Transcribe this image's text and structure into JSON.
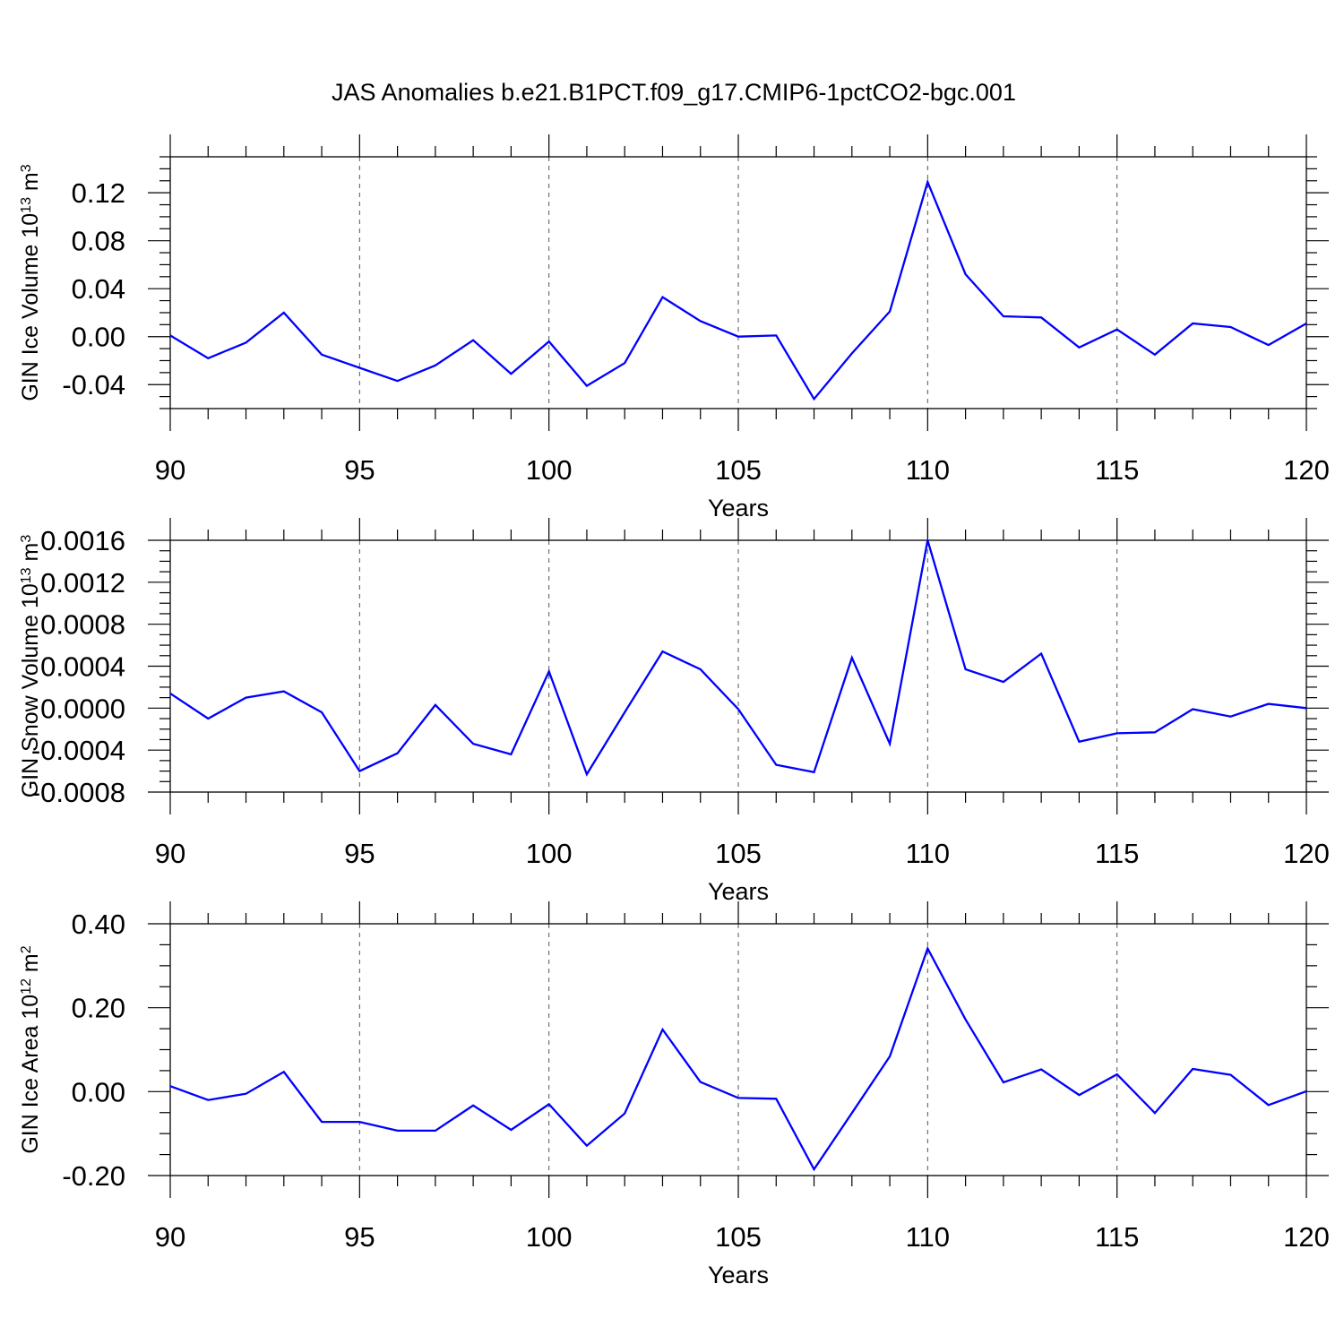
{
  "title": "JAS Anomalies b.e21.B1PCT.f09_g17.CMIP6-1pctCO2-bgc.001",
  "colors": {
    "line": "#0000ff",
    "axis": "#000000",
    "grid": "#555555"
  },
  "chart_data": [
    {
      "type": "line",
      "title": "",
      "ylabel": {
        "base": "GIN Ice Volume 10",
        "sup": "13",
        "mid": " m",
        "sup2": "3"
      },
      "xlabel": "Years",
      "xlim": [
        90,
        120
      ],
      "ylim": [
        -0.06,
        0.15
      ],
      "x_ticks": [
        90,
        95,
        100,
        105,
        110,
        115,
        120
      ],
      "x_tick_labels": [
        "90",
        "95",
        "100",
        "105",
        "110",
        "115",
        "120"
      ],
      "y_ticks": [
        -0.04,
        0.0,
        0.04,
        0.08,
        0.12
      ],
      "y_tick_labels": [
        "-0.04",
        "0.00",
        "0.04",
        "0.08",
        "0.12"
      ],
      "grid": "vertical dashed at major x ticks",
      "x": [
        90,
        91,
        92,
        93,
        94,
        95,
        96,
        97,
        98,
        99,
        100,
        101,
        102,
        103,
        104,
        105,
        106,
        107,
        108,
        109,
        110,
        111,
        112,
        113,
        114,
        115,
        116,
        117,
        118,
        119,
        120
      ],
      "y": [
        0.001,
        -0.018,
        -0.005,
        0.02,
        -0.015,
        -0.026,
        -0.037,
        -0.024,
        -0.003,
        -0.031,
        -0.004,
        -0.041,
        -0.022,
        0.033,
        0.013,
        0.0,
        0.001,
        -0.052,
        -0.014,
        0.021,
        0.129,
        0.052,
        0.017,
        0.016,
        -0.009,
        0.006,
        -0.015,
        0.011,
        0.008,
        -0.007,
        0.011
      ]
    },
    {
      "type": "line",
      "title": "",
      "ylabel": {
        "base": "GIN Snow Volume 10",
        "sup": "13",
        "mid": " m",
        "sup2": "3"
      },
      "xlabel": "Years",
      "xlim": [
        90,
        120
      ],
      "ylim": [
        -0.0008,
        0.0016
      ],
      "x_ticks": [
        90,
        95,
        100,
        105,
        110,
        115,
        120
      ],
      "x_tick_labels": [
        "90",
        "95",
        "100",
        "105",
        "110",
        "115",
        "120"
      ],
      "y_ticks": [
        -0.0008,
        -0.0004,
        0.0,
        0.0004,
        0.0008,
        0.0012,
        0.0016
      ],
      "y_tick_labels": [
        "-0.0008",
        "-0.0004",
        "0.0000",
        "0.0004",
        "0.0008",
        "0.0012",
        "0.0016"
      ],
      "grid": "vertical dashed at major x ticks",
      "x": [
        90,
        91,
        92,
        93,
        94,
        95,
        96,
        97,
        98,
        99,
        100,
        101,
        102,
        103,
        104,
        105,
        106,
        107,
        108,
        109,
        110,
        111,
        112,
        113,
        114,
        115,
        116,
        117,
        118,
        119,
        120
      ],
      "y": [
        0.00014,
        -0.0001,
        0.0001,
        0.00016,
        -4e-05,
        -0.0006,
        -0.00043,
        3e-05,
        -0.00034,
        -0.00044,
        0.00035,
        -0.00063,
        -4e-05,
        0.00054,
        0.00037,
        -1e-05,
        -0.00054,
        -0.00061,
        0.00048,
        -0.00034,
        0.0016,
        0.00037,
        0.00025,
        0.00052,
        -0.00032,
        -0.00024,
        -0.00023,
        -1e-05,
        -8e-05,
        4e-05,
        0.0
      ]
    },
    {
      "type": "line",
      "title": "",
      "ylabel": {
        "base": "GIN Ice Area 10",
        "sup": "12",
        "mid": " m",
        "sup2": "2"
      },
      "xlabel": "Years",
      "xlim": [
        90,
        120
      ],
      "ylim": [
        -0.2,
        0.4
      ],
      "x_ticks": [
        90,
        95,
        100,
        105,
        110,
        115,
        120
      ],
      "x_tick_labels": [
        "90",
        "95",
        "100",
        "105",
        "110",
        "115",
        "120"
      ],
      "y_ticks": [
        -0.2,
        0.0,
        0.2,
        0.4
      ],
      "y_tick_labels": [
        "-0.20",
        "0.00",
        "0.20",
        "0.40"
      ],
      "grid": "vertical dashed at major x ticks",
      "x": [
        90,
        91,
        92,
        93,
        94,
        95,
        96,
        97,
        98,
        99,
        100,
        101,
        102,
        103,
        104,
        105,
        106,
        107,
        108,
        109,
        110,
        111,
        112,
        113,
        114,
        115,
        116,
        117,
        118,
        119,
        120
      ],
      "y": [
        0.013,
        -0.02,
        -0.005,
        0.047,
        -0.072,
        -0.072,
        -0.093,
        -0.093,
        -0.033,
        -0.091,
        -0.03,
        -0.129,
        -0.052,
        0.148,
        0.023,
        -0.015,
        -0.017,
        -0.185,
        -0.051,
        0.084,
        0.341,
        0.172,
        0.022,
        0.053,
        -0.008,
        0.041,
        -0.051,
        0.054,
        0.04,
        -0.032,
        0.001
      ]
    }
  ]
}
